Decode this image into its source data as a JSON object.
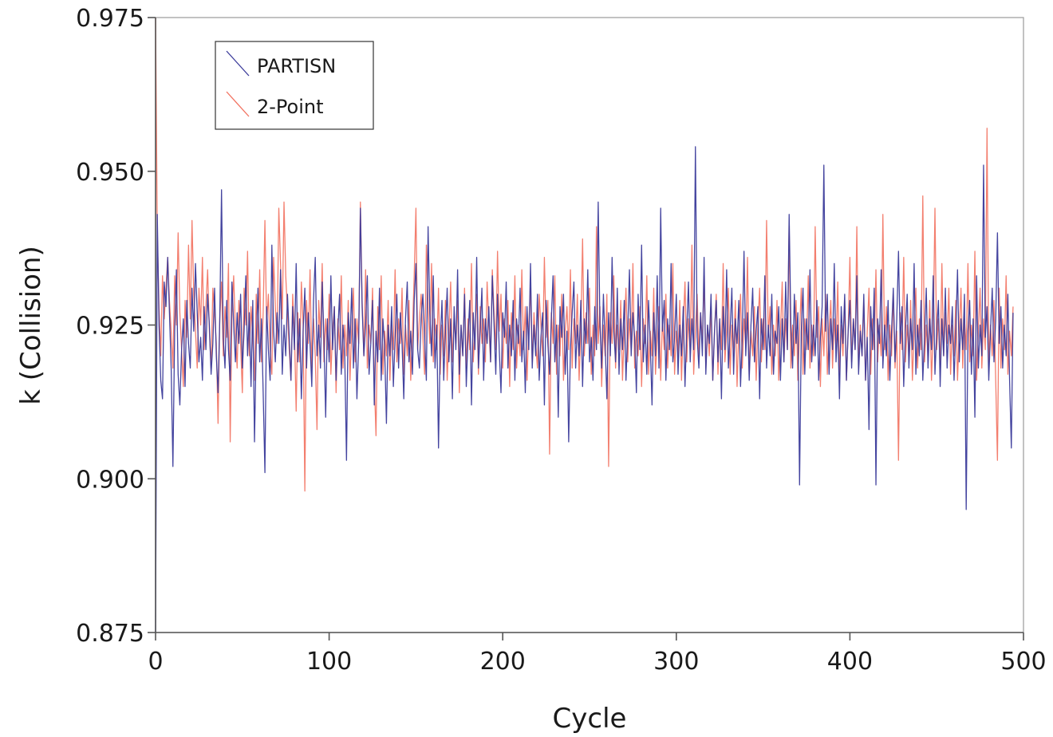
{
  "chart_data": {
    "type": "line",
    "xlabel": "Cycle",
    "ylabel": "k (Collision)",
    "xlim": [
      0,
      500
    ],
    "ylim": [
      0.875,
      0.975
    ],
    "x_ticks": [
      0,
      100,
      200,
      300,
      400,
      500
    ],
    "x_tick_labels": [
      "0",
      "100",
      "200",
      "300",
      "400",
      "500"
    ],
    "y_ticks": [
      0.875,
      0.9,
      0.925,
      0.95,
      0.975
    ],
    "y_tick_labels": [
      "0.875",
      "0.900",
      "0.925",
      "0.950",
      "0.975"
    ],
    "grid": false,
    "legend_position": "top-left",
    "x_step": 1,
    "series": [
      {
        "name": "PARTISN",
        "color": "#3a3a9a",
        "values": [
          0.875,
          0.943,
          0.925,
          0.916,
          0.913,
          0.932,
          0.928,
          0.936,
          0.927,
          0.918,
          0.902,
          0.924,
          0.934,
          0.917,
          0.912,
          0.921,
          0.926,
          0.915,
          0.929,
          0.922,
          0.918,
          0.931,
          0.924,
          0.935,
          0.927,
          0.919,
          0.923,
          0.916,
          0.928,
          0.921,
          0.93,
          0.925,
          0.917,
          0.922,
          0.931,
          0.92,
          0.914,
          0.926,
          0.947,
          0.923,
          0.918,
          0.929,
          0.921,
          0.916,
          0.932,
          0.925,
          0.919,
          0.927,
          0.922,
          0.93,
          0.918,
          0.924,
          0.933,
          0.92,
          0.927,
          0.915,
          0.929,
          0.906,
          0.922,
          0.931,
          0.919,
          0.926,
          0.914,
          0.901,
          0.928,
          0.921,
          0.916,
          0.938,
          0.924,
          0.919,
          0.927,
          0.922,
          0.934,
          0.917,
          0.925,
          0.92,
          0.93,
          0.923,
          0.916,
          0.928,
          0.921,
          0.935,
          0.919,
          0.926,
          0.913,
          0.924,
          0.931,
          0.918,
          0.927,
          0.922,
          0.915,
          0.929,
          0.936,
          0.92,
          0.925,
          0.918,
          0.932,
          0.923,
          0.91,
          0.926,
          0.919,
          0.933,
          0.921,
          0.928,
          0.916,
          0.924,
          0.93,
          0.917,
          0.925,
          0.92,
          0.903,
          0.927,
          0.922,
          0.931,
          0.918,
          0.926,
          0.913,
          0.922,
          0.944,
          0.928,
          0.92,
          0.925,
          0.933,
          0.917,
          0.922,
          0.929,
          0.912,
          0.924,
          0.919,
          0.931,
          0.916,
          0.926,
          0.921,
          0.909,
          0.925,
          0.92,
          0.928,
          0.915,
          0.923,
          0.93,
          0.918,
          0.927,
          0.922,
          0.913,
          0.926,
          0.932,
          0.919,
          0.924,
          0.917,
          0.929,
          0.935,
          0.921,
          0.918,
          0.926,
          0.93,
          0.923,
          0.916,
          0.941,
          0.927,
          0.92,
          0.933,
          0.918,
          0.925,
          0.905,
          0.922,
          0.929,
          0.916,
          0.924,
          0.931,
          0.919,
          0.926,
          0.913,
          0.928,
          0.921,
          0.934,
          0.917,
          0.925,
          0.92,
          0.93,
          0.915,
          0.923,
          0.929,
          0.912,
          0.927,
          0.921,
          0.936,
          0.918,
          0.924,
          0.931,
          0.916,
          0.926,
          0.922,
          0.928,
          0.919,
          0.933,
          0.925,
          0.917,
          0.93,
          0.921,
          0.914,
          0.927,
          0.923,
          0.932,
          0.918,
          0.925,
          0.92,
          0.929,
          0.916,
          0.926,
          0.922,
          0.931,
          0.919,
          0.924,
          0.914,
          0.928,
          0.921,
          0.935,
          0.918,
          0.925,
          0.92,
          0.93,
          0.916,
          0.923,
          0.927,
          0.912,
          0.929,
          0.922,
          0.917,
          0.926,
          0.933,
          0.919,
          0.925,
          0.91,
          0.928,
          0.923,
          0.93,
          0.917,
          0.924,
          0.906,
          0.921,
          0.927,
          0.932,
          0.918,
          0.925,
          0.92,
          0.929,
          0.915,
          0.926,
          0.922,
          0.934,
          0.919,
          0.923,
          0.916,
          0.928,
          0.921,
          0.945,
          0.925,
          0.918,
          0.93,
          0.922,
          0.913,
          0.927,
          0.92,
          0.936,
          0.924,
          0.919,
          0.931,
          0.917,
          0.926,
          0.921,
          0.929,
          0.916,
          0.924,
          0.934,
          0.92,
          0.927,
          0.923,
          0.914,
          0.93,
          0.921,
          0.938,
          0.919,
          0.925,
          0.917,
          0.929,
          0.922,
          0.912,
          0.927,
          0.92,
          0.933,
          0.918,
          0.944,
          0.924,
          0.929,
          0.916,
          0.926,
          0.921,
          0.935,
          0.919,
          0.923,
          0.93,
          0.917,
          0.925,
          0.92,
          0.928,
          0.915,
          0.924,
          0.932,
          0.919,
          0.926,
          0.921,
          0.954,
          0.923,
          0.918,
          0.927,
          0.92,
          0.936,
          0.917,
          0.925,
          0.922,
          0.93,
          0.916,
          0.924,
          0.929,
          0.919,
          0.926,
          0.913,
          0.928,
          0.921,
          0.934,
          0.918,
          0.924,
          0.931,
          0.917,
          0.926,
          0.922,
          0.929,
          0.915,
          0.923,
          0.937,
          0.92,
          0.927,
          0.916,
          0.925,
          0.931,
          0.919,
          0.924,
          0.928,
          0.913,
          0.926,
          0.921,
          0.933,
          0.918,
          0.925,
          0.92,
          0.93,
          0.917,
          0.924,
          0.922,
          0.928,
          0.916,
          0.926,
          0.919,
          0.932,
          0.921,
          0.943,
          0.925,
          0.918,
          0.93,
          0.922,
          0.927,
          0.899,
          0.924,
          0.931,
          0.917,
          0.926,
          0.921,
          0.934,
          0.919,
          0.925,
          0.92,
          0.929,
          0.916,
          0.923,
          0.928,
          0.951,
          0.924,
          0.93,
          0.917,
          0.926,
          0.921,
          0.935,
          0.919,
          0.925,
          0.913,
          0.928,
          0.922,
          0.93,
          0.916,
          0.924,
          0.929,
          0.918,
          0.926,
          0.921,
          0.933,
          0.917,
          0.924,
          0.92,
          0.93,
          0.916,
          0.923,
          0.908,
          0.928,
          0.921,
          0.931,
          0.899,
          0.926,
          0.922,
          0.934,
          0.918,
          0.925,
          0.92,
          0.929,
          0.916,
          0.924,
          0.931,
          0.919,
          0.926,
          0.937,
          0.922,
          0.928,
          0.915,
          0.924,
          0.93,
          0.918,
          0.926,
          0.921,
          0.935,
          0.917,
          0.925,
          0.92,
          0.929,
          0.916,
          0.923,
          0.931,
          0.918,
          0.926,
          0.921,
          0.933,
          0.917,
          0.924,
          0.929,
          0.915,
          0.926,
          0.92,
          0.931,
          0.918,
          0.925,
          0.922,
          0.928,
          0.916,
          0.924,
          0.934,
          0.919,
          0.926,
          0.921,
          0.93,
          0.895,
          0.924,
          0.929,
          0.917,
          0.926,
          0.91,
          0.933,
          0.918,
          0.925,
          0.92,
          0.951,
          0.923,
          0.928,
          0.916,
          0.924,
          0.931,
          0.919,
          0.926,
          0.94,
          0.922,
          0.928,
          0.918,
          0.925,
          0.92,
          0.93,
          0.916,
          0.905,
          0.927
        ]
      },
      {
        "name": "2-Point",
        "color": "#f2705e",
        "values": [
          0.975,
          0.94,
          0.928,
          0.92,
          0.933,
          0.926,
          0.931,
          0.936,
          0.929,
          0.924,
          0.918,
          0.933,
          0.925,
          0.94,
          0.927,
          0.921,
          0.915,
          0.929,
          0.923,
          0.938,
          0.926,
          0.942,
          0.93,
          0.924,
          0.918,
          0.931,
          0.925,
          0.936,
          0.921,
          0.928,
          0.934,
          0.924,
          0.918,
          0.931,
          0.927,
          0.922,
          0.909,
          0.926,
          0.932,
          0.92,
          0.928,
          0.923,
          0.935,
          0.906,
          0.927,
          0.933,
          0.924,
          0.918,
          0.929,
          0.922,
          0.914,
          0.931,
          0.925,
          0.937,
          0.92,
          0.928,
          0.923,
          0.916,
          0.93,
          0.922,
          0.934,
          0.919,
          0.927,
          0.942,
          0.925,
          0.93,
          0.921,
          0.917,
          0.936,
          0.928,
          0.922,
          0.944,
          0.935,
          0.926,
          0.945,
          0.933,
          0.927,
          0.921,
          0.916,
          0.93,
          0.924,
          0.911,
          0.927,
          0.919,
          0.932,
          0.925,
          0.898,
          0.929,
          0.922,
          0.934,
          0.918,
          0.926,
          0.92,
          0.908,
          0.929,
          0.923,
          0.935,
          0.919,
          0.926,
          0.921,
          0.93,
          0.917,
          0.924,
          0.928,
          0.914,
          0.926,
          0.921,
          0.933,
          0.918,
          0.925,
          0.92,
          0.929,
          0.916,
          0.924,
          0.931,
          0.919,
          0.926,
          0.922,
          0.945,
          0.929,
          0.92,
          0.934,
          0.918,
          0.925,
          0.922,
          0.931,
          0.916,
          0.907,
          0.928,
          0.921,
          0.933,
          0.917,
          0.924,
          0.92,
          0.929,
          0.916,
          0.925,
          0.921,
          0.934,
          0.919,
          0.926,
          0.922,
          0.931,
          0.917,
          0.925,
          0.92,
          0.929,
          0.916,
          0.924,
          0.933,
          0.944,
          0.921,
          0.926,
          0.93,
          0.923,
          0.917,
          0.938,
          0.928,
          0.922,
          0.935,
          0.919,
          0.926,
          0.921,
          0.931,
          0.917,
          0.925,
          0.92,
          0.929,
          0.916,
          0.924,
          0.932,
          0.919,
          0.926,
          0.922,
          0.929,
          0.914,
          0.925,
          0.92,
          0.931,
          0.918,
          0.926,
          0.921,
          0.935,
          0.919,
          0.924,
          0.93,
          0.917,
          0.928,
          0.922,
          0.926,
          0.919,
          0.932,
          0.925,
          0.919,
          0.934,
          0.927,
          0.921,
          0.937,
          0.924,
          0.93,
          0.918,
          0.926,
          0.922,
          0.929,
          0.915,
          0.927,
          0.921,
          0.933,
          0.918,
          0.925,
          0.92,
          0.934,
          0.921,
          0.928,
          0.916,
          0.925,
          0.931,
          0.919,
          0.927,
          0.922,
          0.918,
          0.93,
          0.925,
          0.92,
          0.936,
          0.923,
          0.929,
          0.904,
          0.927,
          0.922,
          0.933,
          0.917,
          0.925,
          0.92,
          0.93,
          0.916,
          0.924,
          0.928,
          0.921,
          0.934,
          0.918,
          0.926,
          0.922,
          0.93,
          0.916,
          0.924,
          0.939,
          0.92,
          0.927,
          0.922,
          0.931,
          0.917,
          0.925,
          0.92,
          0.941,
          0.922,
          0.928,
          0.915,
          0.925,
          0.92,
          0.93,
          0.902,
          0.927,
          0.922,
          0.933,
          0.918,
          0.925,
          0.921,
          0.929,
          0.916,
          0.924,
          0.931,
          0.919,
          0.926,
          0.921,
          0.935,
          0.918,
          0.924,
          0.92,
          0.928,
          0.915,
          0.926,
          0.922,
          0.933,
          0.917,
          0.924,
          0.92,
          0.931,
          0.917,
          0.923,
          0.928,
          0.916,
          0.926,
          0.921,
          0.93,
          0.918,
          0.925,
          0.92,
          0.935,
          0.917,
          0.924,
          0.92,
          0.929,
          0.916,
          0.925,
          0.932,
          0.919,
          0.926,
          0.921,
          0.938,
          0.917,
          0.924,
          0.93,
          0.92,
          0.927,
          0.922,
          0.933,
          0.918,
          0.925,
          0.92,
          0.928,
          0.916,
          0.924,
          0.93,
          0.917,
          0.926,
          0.921,
          0.935,
          0.919,
          0.924,
          0.931,
          0.917,
          0.925,
          0.92,
          0.929,
          0.915,
          0.924,
          0.93,
          0.918,
          0.926,
          0.922,
          0.936,
          0.917,
          0.924,
          0.92,
          0.928,
          0.916,
          0.925,
          0.931,
          0.919,
          0.926,
          0.921,
          0.942,
          0.923,
          0.928,
          0.917,
          0.925,
          0.92,
          0.929,
          0.916,
          0.924,
          0.932,
          0.919,
          0.926,
          0.921,
          0.941,
          0.918,
          0.925,
          0.92,
          0.929,
          0.916,
          0.924,
          0.931,
          0.917,
          0.926,
          0.921,
          0.933,
          0.918,
          0.925,
          0.92,
          0.941,
          0.923,
          0.928,
          0.915,
          0.926,
          0.92,
          0.93,
          0.917,
          0.924,
          0.929,
          0.918,
          0.926,
          0.921,
          0.932,
          0.917,
          0.925,
          0.92,
          0.929,
          0.916,
          0.924,
          0.936,
          0.919,
          0.926,
          0.921,
          0.941,
          0.918,
          0.925,
          0.92,
          0.929,
          0.916,
          0.924,
          0.931,
          0.917,
          0.926,
          0.921,
          0.934,
          0.919,
          0.925,
          0.92,
          0.943,
          0.921,
          0.928,
          0.916,
          0.925,
          0.92,
          0.93,
          0.918,
          0.924,
          0.903,
          0.927,
          0.921,
          0.936,
          0.919,
          0.925,
          0.92,
          0.929,
          0.916,
          0.924,
          0.931,
          0.918,
          0.926,
          0.921,
          0.946,
          0.919,
          0.925,
          0.92,
          0.929,
          0.916,
          0.924,
          0.944,
          0.921,
          0.926,
          0.918,
          0.935,
          0.92,
          0.927,
          0.922,
          0.931,
          0.917,
          0.925,
          0.92,
          0.929,
          0.916,
          0.924,
          0.931,
          0.918,
          0.926,
          0.921,
          0.935,
          0.919,
          0.925,
          0.92,
          0.937,
          0.916,
          0.924,
          0.931,
          0.918,
          0.926,
          0.921,
          0.957,
          0.919,
          0.925,
          0.92,
          0.929,
          0.916,
          0.903,
          0.931,
          0.918,
          0.926,
          0.921,
          0.933,
          0.917,
          0.924,
          0.92,
          0.928
        ]
      }
    ]
  }
}
